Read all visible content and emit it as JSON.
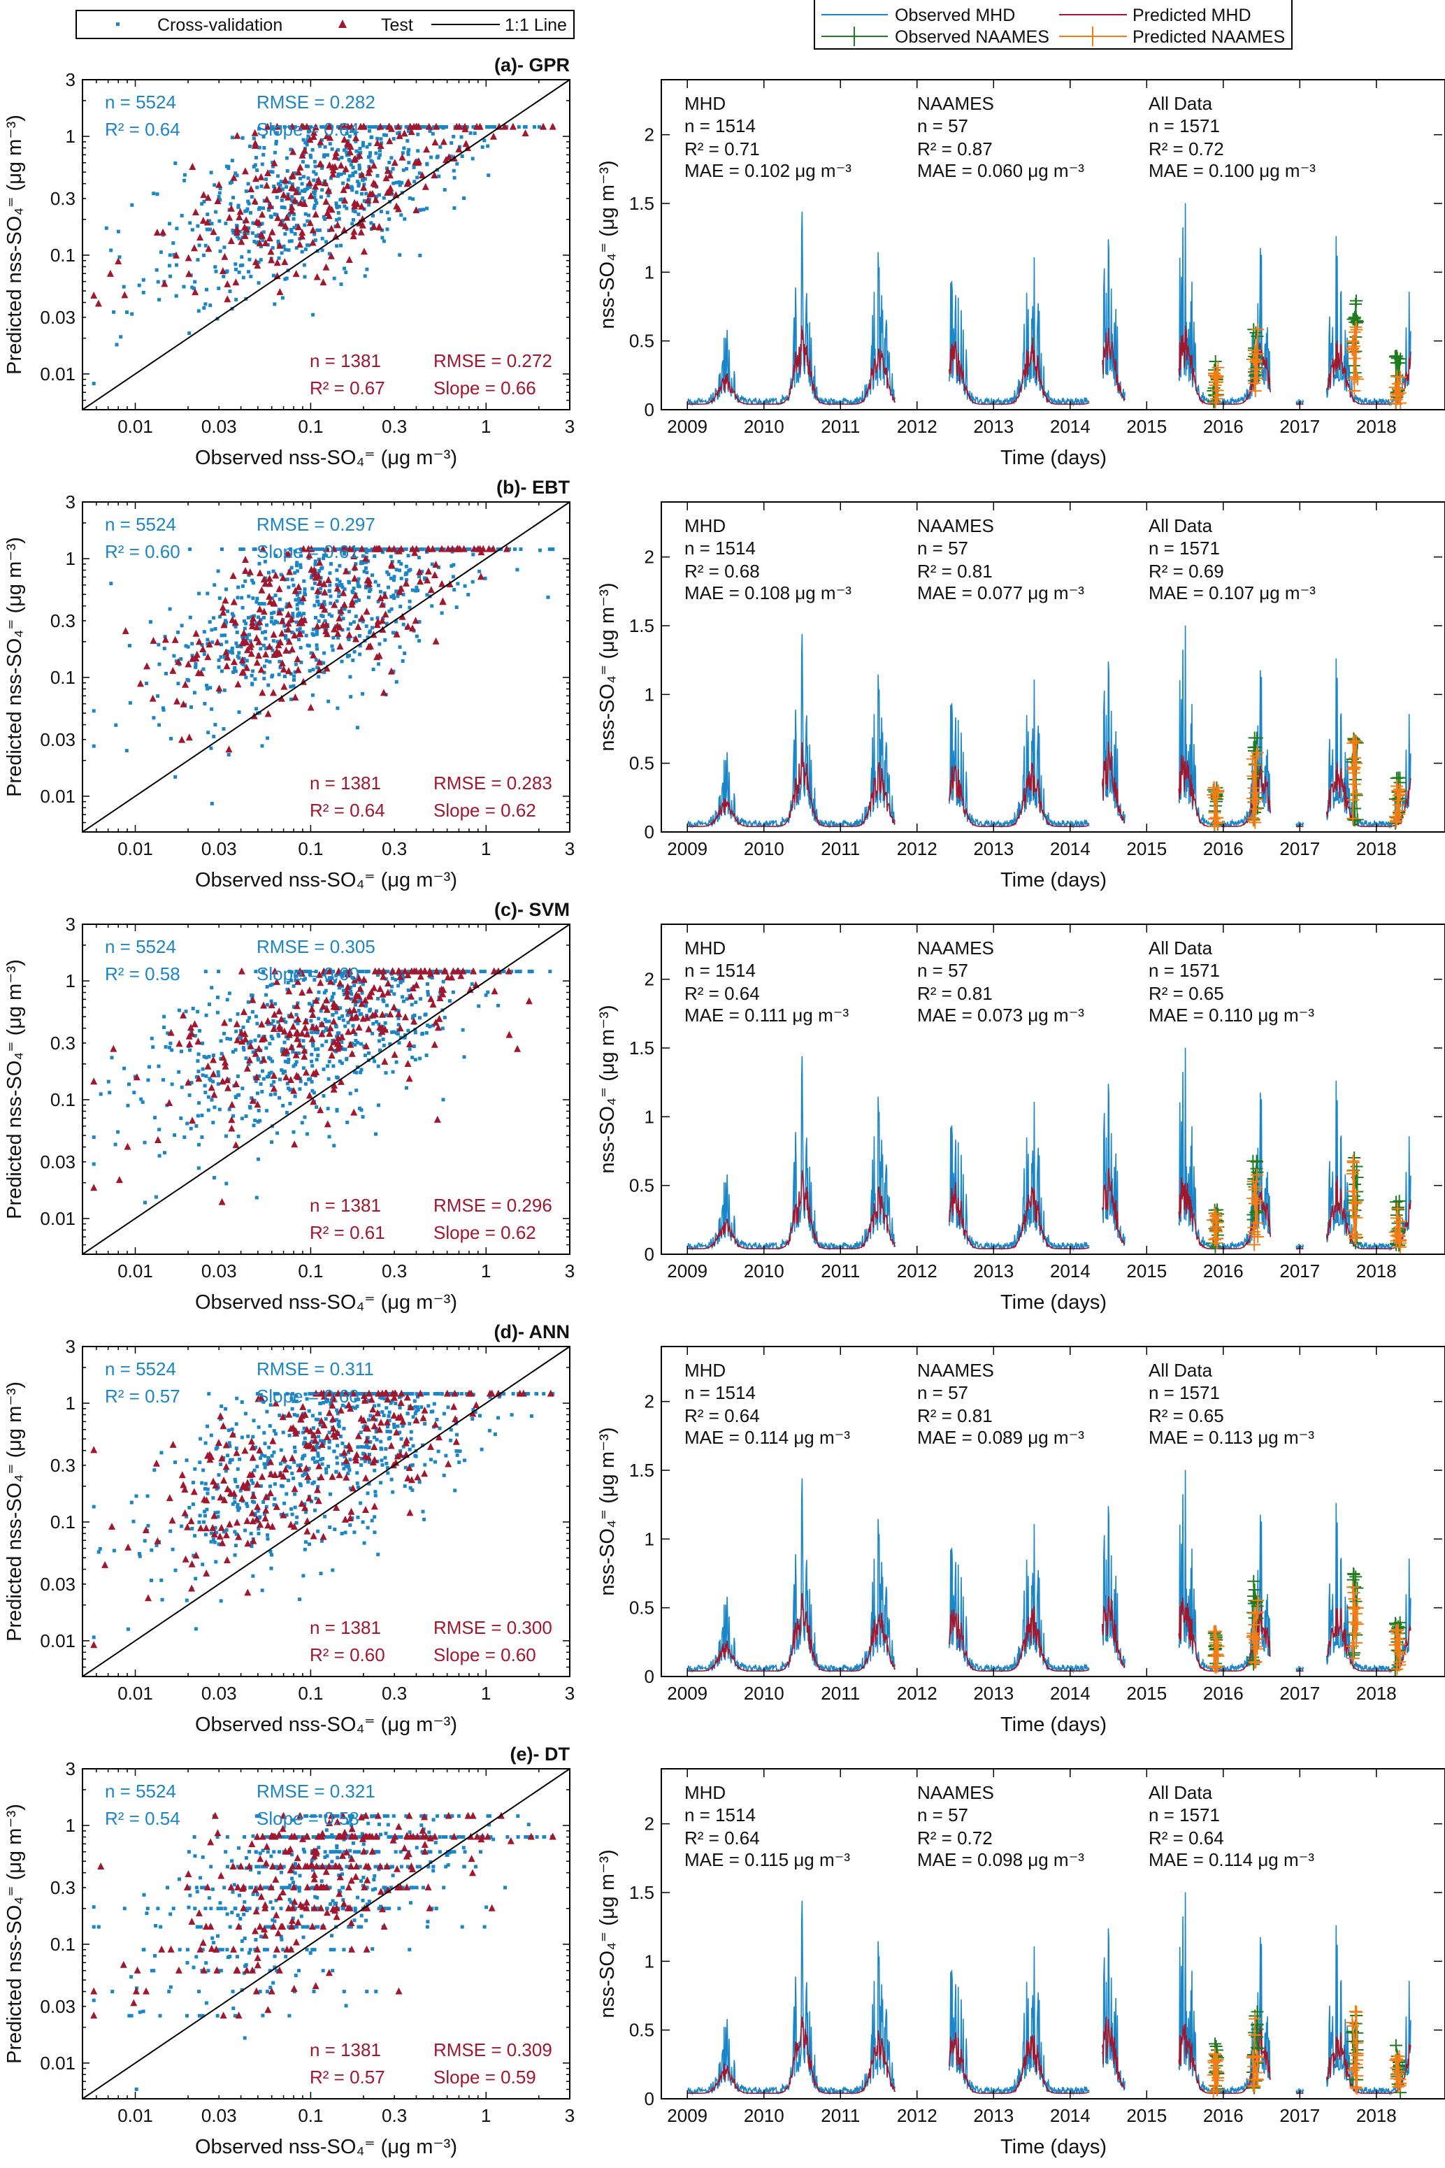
{
  "legends": {
    "scatter": {
      "items": [
        {
          "label": "Cross-validation",
          "marker": "square",
          "color": "#1a86c8"
        },
        {
          "label": "Test",
          "marker": "triangle",
          "color": "#a0172e"
        },
        {
          "label": "1:1 Line",
          "marker": "line",
          "color": "#000000"
        }
      ]
    },
    "timeseries": {
      "items": [
        {
          "label": "Observed MHD",
          "marker": "line",
          "color": "#1a86c8"
        },
        {
          "label": "Predicted MHD",
          "marker": "line",
          "color": "#a0172e"
        },
        {
          "label": "Observed NAAMES",
          "marker": "line-plus",
          "color": "#1e7b1e"
        },
        {
          "label": "Predicted NAAMES",
          "marker": "line-plus",
          "color": "#f57c14"
        }
      ]
    }
  },
  "colors": {
    "cv": "#1a86c8",
    "test": "#a0172e",
    "obs_naames": "#1e7b1e",
    "pred_naames": "#f57c14",
    "axis": "#000000"
  },
  "chart_data": [
    {
      "type": "scatter",
      "title": "(a)- GPR",
      "xlabel": "Observed nss-SO₄⁼ (μg m⁻³)",
      "ylabel": "Predicted nss-SO₄⁼ (μg m⁻³)",
      "scale": "log",
      "xlim": [
        0.005,
        3
      ],
      "ylim": [
        0.005,
        3
      ],
      "ticks": [
        0.01,
        0.03,
        0.1,
        0.3,
        1,
        3
      ],
      "tick_labels": [
        "0.01",
        "0.03",
        "0.1",
        "0.3",
        "1",
        "3"
      ],
      "cross_validation": {
        "n": "n = 5524",
        "r2": "R² = 0.64",
        "rmse": "RMSE = 0.282",
        "slope": "Slope = 0.64",
        "count": 5524,
        "slope_value": 0.64,
        "r2_value": 0.64
      },
      "test": {
        "n": "n = 1381",
        "r2": "R² = 0.67",
        "rmse": "RMSE = 0.272",
        "slope": "Slope = 0.66",
        "count": 1381,
        "slope_value": 0.66,
        "r2_value": 0.67
      }
    },
    {
      "type": "line",
      "xlabel": "Time (days)",
      "ylabel": "nss-SO₄⁼ (μg m⁻³)",
      "xlim": [
        2008.66,
        2018.86
      ],
      "ylim": [
        0,
        2.4
      ],
      "xticks": [
        "2009",
        "2010",
        "2011",
        "2012",
        "2013",
        "2014",
        "2015",
        "2016",
        "2017",
        "2018"
      ],
      "yticks": [
        "0",
        "0.5",
        "1",
        "1.5",
        "2"
      ],
      "stats": [
        {
          "header": "MHD",
          "n": "n = 1514",
          "r2": "R² = 0.71",
          "mae": "MAE = 0.102 μg m⁻³"
        },
        {
          "header": "NAAMES",
          "n": "n = 57",
          "r2": "R² = 0.87",
          "mae": "MAE = 0.060 μg m⁻³"
        },
        {
          "header": "All Data",
          "n": "n = 1571",
          "r2": "R² = 0.72",
          "mae": "MAE = 0.100 μg m⁻³"
        }
      ]
    },
    {
      "type": "scatter",
      "title": "(b)- EBT",
      "xlabel": "Observed nss-SO₄⁼ (μg m⁻³)",
      "ylabel": "Predicted nss-SO₄⁼ (μg m⁻³)",
      "scale": "log",
      "xlim": [
        0.005,
        3
      ],
      "ylim": [
        0.005,
        3
      ],
      "ticks": [
        0.01,
        0.03,
        0.1,
        0.3,
        1,
        3
      ],
      "tick_labels": [
        "0.01",
        "0.03",
        "0.1",
        "0.3",
        "1",
        "3"
      ],
      "cross_validation": {
        "n": "n = 5524",
        "r2": "R² = 0.60",
        "rmse": "RMSE = 0.297",
        "slope": "Slope = 0.61",
        "count": 5524,
        "slope_value": 0.61,
        "r2_value": 0.6
      },
      "test": {
        "n": "n = 1381",
        "r2": "R² = 0.64",
        "rmse": "RMSE = 0.283",
        "slope": "Slope = 0.62",
        "count": 1381,
        "slope_value": 0.62,
        "r2_value": 0.64
      }
    },
    {
      "type": "line",
      "xlabel": "Time (days)",
      "ylabel": "nss-SO₄⁼ (μg m⁻³)",
      "xlim": [
        2008.66,
        2018.86
      ],
      "ylim": [
        0,
        2.4
      ],
      "xticks": [
        "2009",
        "2010",
        "2011",
        "2012",
        "2013",
        "2014",
        "2015",
        "2016",
        "2017",
        "2018"
      ],
      "yticks": [
        "0",
        "0.5",
        "1",
        "1.5",
        "2"
      ],
      "stats": [
        {
          "header": "MHD",
          "n": "n = 1514",
          "r2": "R² = 0.68",
          "mae": "MAE = 0.108 μg m⁻³"
        },
        {
          "header": "NAAMES",
          "n": "n = 57",
          "r2": "R² = 0.81",
          "mae": "MAE = 0.077 μg m⁻³"
        },
        {
          "header": "All Data",
          "n": "n = 1571",
          "r2": "R² = 0.69",
          "mae": "MAE = 0.107 μg m⁻³"
        }
      ]
    },
    {
      "type": "scatter",
      "title": "(c)- SVM",
      "xlabel": "Observed nss-SO₄⁼ (μg m⁻³)",
      "ylabel": "Predicted nss-SO₄⁼ (μg m⁻³)",
      "scale": "log",
      "xlim": [
        0.005,
        3
      ],
      "ylim": [
        0.005,
        3
      ],
      "ticks": [
        0.01,
        0.03,
        0.1,
        0.3,
        1,
        3
      ],
      "tick_labels": [
        "0.01",
        "0.03",
        "0.1",
        "0.3",
        "1",
        "3"
      ],
      "cross_validation": {
        "n": "n = 5524",
        "r2": "R² = 0.58",
        "rmse": "RMSE = 0.305",
        "slope": "Slope = 0.60",
        "count": 5524,
        "slope_value": 0.6,
        "r2_value": 0.58
      },
      "test": {
        "n": "n = 1381",
        "r2": "R² = 0.61",
        "rmse": "RMSE = 0.296",
        "slope": "Slope = 0.62",
        "count": 1381,
        "slope_value": 0.62,
        "r2_value": 0.61
      }
    },
    {
      "type": "line",
      "xlabel": "Time (days)",
      "ylabel": "nss-SO₄⁼ (μg m⁻³)",
      "xlim": [
        2008.66,
        2018.86
      ],
      "ylim": [
        0,
        2.4
      ],
      "xticks": [
        "2009",
        "2010",
        "2011",
        "2012",
        "2013",
        "2014",
        "2015",
        "2016",
        "2017",
        "2018"
      ],
      "yticks": [
        "0",
        "0.5",
        "1",
        "1.5",
        "2"
      ],
      "stats": [
        {
          "header": "MHD",
          "n": "n = 1514",
          "r2": "R² = 0.64",
          "mae": "MAE = 0.111 μg m⁻³"
        },
        {
          "header": "NAAMES",
          "n": "n = 57",
          "r2": "R² = 0.81",
          "mae": "MAE = 0.073 μg m⁻³"
        },
        {
          "header": "All Data",
          "n": "n = 1571",
          "r2": "R² = 0.65",
          "mae": "MAE = 0.110 μg m⁻³"
        }
      ]
    },
    {
      "type": "scatter",
      "title": "(d)- ANN",
      "xlabel": "Observed nss-SO₄⁼ (μg m⁻³)",
      "ylabel": "Predicted nss-SO₄⁼ (μg m⁻³)",
      "scale": "log",
      "xlim": [
        0.005,
        3
      ],
      "ylim": [
        0.005,
        3
      ],
      "ticks": [
        0.01,
        0.03,
        0.1,
        0.3,
        1,
        3
      ],
      "tick_labels": [
        "0.01",
        "0.03",
        "0.1",
        "0.3",
        "1",
        "3"
      ],
      "cross_validation": {
        "n": "n = 5524",
        "r2": "R² = 0.57",
        "rmse": "RMSE = 0.311",
        "slope": "Slope = 0.60",
        "count": 5524,
        "slope_value": 0.6,
        "r2_value": 0.57
      },
      "test": {
        "n": "n = 1381",
        "r2": "R² = 0.60",
        "rmse": "RMSE = 0.300",
        "slope": "Slope = 0.60",
        "count": 1381,
        "slope_value": 0.6,
        "r2_value": 0.6
      }
    },
    {
      "type": "line",
      "xlabel": "Time (days)",
      "ylabel": "nss-SO₄⁼ (μg m⁻³)",
      "xlim": [
        2008.66,
        2018.86
      ],
      "ylim": [
        0,
        2.4
      ],
      "xticks": [
        "2009",
        "2010",
        "2011",
        "2012",
        "2013",
        "2014",
        "2015",
        "2016",
        "2017",
        "2018"
      ],
      "yticks": [
        "0",
        "0.5",
        "1",
        "1.5",
        "2"
      ],
      "stats": [
        {
          "header": "MHD",
          "n": "n = 1514",
          "r2": "R² = 0.64",
          "mae": "MAE = 0.114 μg m⁻³"
        },
        {
          "header": "NAAMES",
          "n": "n = 57",
          "r2": "R² = 0.81",
          "mae": "MAE = 0.089 μg m⁻³"
        },
        {
          "header": "All Data",
          "n": "n = 1571",
          "r2": "R² = 0.65",
          "mae": "MAE = 0.113 μg m⁻³"
        }
      ]
    },
    {
      "type": "scatter",
      "title": "(e)- DT",
      "xlabel": "Observed nss-SO₄⁼ (μg m⁻³)",
      "ylabel": "Predicted nss-SO₄⁼ (μg m⁻³)",
      "scale": "log",
      "xlim": [
        0.005,
        3
      ],
      "ylim": [
        0.005,
        3
      ],
      "ticks": [
        0.01,
        0.03,
        0.1,
        0.3,
        1,
        3
      ],
      "tick_labels": [
        "0.01",
        "0.03",
        "0.1",
        "0.3",
        "1",
        "3"
      ],
      "cross_validation": {
        "n": "n = 5524",
        "r2": "R² = 0.54",
        "rmse": "RMSE = 0.321",
        "slope": "Slope = 0.58",
        "count": 5524,
        "slope_value": 0.58,
        "r2_value": 0.54
      },
      "test": {
        "n": "n = 1381",
        "r2": "R² = 0.57",
        "rmse": "RMSE = 0.309",
        "slope": "Slope = 0.59",
        "count": 1381,
        "slope_value": 0.59,
        "r2_value": 0.57
      }
    },
    {
      "type": "line",
      "xlabel": "Time (days)",
      "ylabel": "nss-SO₄⁼ (μg m⁻³)",
      "xlim": [
        2008.66,
        2018.86
      ],
      "ylim": [
        0,
        2.4
      ],
      "xticks": [
        "2009",
        "2010",
        "2011",
        "2012",
        "2013",
        "2014",
        "2015",
        "2016",
        "2017",
        "2018"
      ],
      "yticks": [
        "0",
        "0.5",
        "1",
        "1.5",
        "2"
      ],
      "stats": [
        {
          "header": "MHD",
          "n": "n = 1514",
          "r2": "R² = 0.64",
          "mae": "MAE = 0.115 μg m⁻³"
        },
        {
          "header": "NAAMES",
          "n": "n = 57",
          "r2": "R² = 0.72",
          "mae": "MAE = 0.098 μg m⁻³"
        },
        {
          "header": "All Data",
          "n": "n = 1571",
          "r2": "R² = 0.64",
          "mae": "MAE = 0.114 μg m⁻³"
        }
      ]
    }
  ],
  "timeseries_shape": {
    "mhd_coverage_years": [
      [
        2009.0,
        2011.72
      ],
      [
        2012.42,
        2014.25
      ],
      [
        2014.42,
        2014.72
      ],
      [
        2015.42,
        2016.62
      ],
      [
        2016.95,
        2017.05
      ],
      [
        2017.35,
        2018.45
      ]
    ],
    "annual_peak_observed": {
      "2009": 0.55,
      "2010": 1.48,
      "2011": 1.15,
      "2012": 1.25,
      "2013": 1.3,
      "2014": 1.55,
      "2015": 1.5,
      "2016": 1.2,
      "2017": 1.33,
      "2018": 1.2
    },
    "naames_campaigns": [
      {
        "time": 2015.9,
        "peak": 0.4
      },
      {
        "time": 2016.42,
        "peak": 0.7
      },
      {
        "time": 2017.72,
        "peak": 0.8
      },
      {
        "time": 2018.28,
        "peak": 0.4
      }
    ]
  }
}
